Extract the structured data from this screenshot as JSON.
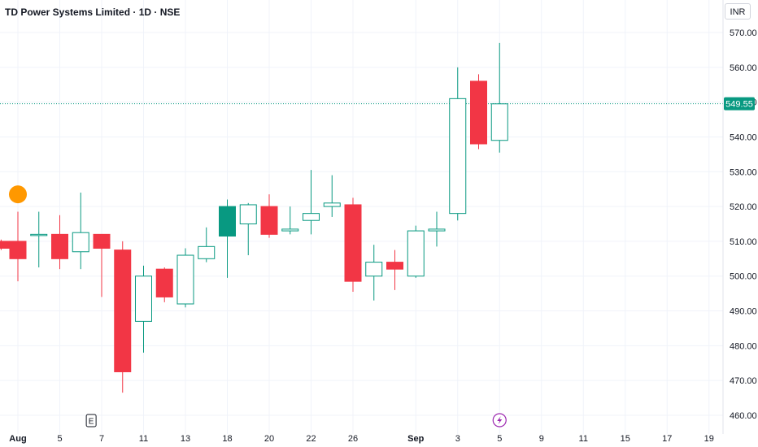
{
  "header": {
    "title": "TD Power Systems Limited · 1D · NSE",
    "currency": "INR"
  },
  "colors": {
    "up": "#089981",
    "down": "#f23645",
    "grid": "#f0f3fa",
    "last_price": "#089981",
    "dividend": "#ff9800",
    "split": "#9c27b0"
  },
  "chart_data": {
    "type": "candlestick",
    "title": "TD Power Systems Limited · 1D · NSE",
    "ylim": [
      457,
      574
    ],
    "y_ticks": [
      460,
      470,
      480,
      490,
      500,
      510,
      520,
      530,
      540,
      550,
      560,
      570
    ],
    "y_tick_labels": [
      "460.00",
      "470.00",
      "480.00",
      "490.00",
      "500.00",
      "510.00",
      "520.00",
      "530.00",
      "540.00",
      "550.00",
      "560.00",
      "570.00"
    ],
    "x_labels": [
      {
        "label": "Aug",
        "slot": 0,
        "bold": true
      },
      {
        "label": "5",
        "slot": 2
      },
      {
        "label": "7",
        "slot": 4
      },
      {
        "label": "11",
        "slot": 6
      },
      {
        "label": "13",
        "slot": 8
      },
      {
        "label": "18",
        "slot": 10
      },
      {
        "label": "20",
        "slot": 12
      },
      {
        "label": "22",
        "slot": 14
      },
      {
        "label": "26",
        "slot": 16
      },
      {
        "label": "Sep",
        "slot": 19,
        "bold": true
      },
      {
        "label": "3",
        "slot": 21
      },
      {
        "label": "5",
        "slot": 23
      },
      {
        "label": "9",
        "slot": 25
      },
      {
        "label": "11",
        "slot": 27
      },
      {
        "label": "15",
        "slot": 29
      },
      {
        "label": "17",
        "slot": 31
      },
      {
        "label": "19",
        "slot": 33
      }
    ],
    "last_price": 549.55,
    "last_price_label": "549.55",
    "candles": [
      {
        "slot": -0.8,
        "open": 510,
        "high": 510.5,
        "low": 507.5,
        "close": 508
      },
      {
        "slot": 0,
        "open": 510,
        "high": 518.5,
        "low": 498.5,
        "close": 505
      },
      {
        "slot": 1,
        "open": 512,
        "high": 518.5,
        "low": 502.5,
        "close": 512
      },
      {
        "slot": 2,
        "open": 512,
        "high": 517.5,
        "low": 502,
        "close": 505
      },
      {
        "slot": 3,
        "open": 507,
        "high": 524,
        "low": 502,
        "close": 512.5
      },
      {
        "slot": 4,
        "open": 512,
        "high": 512,
        "low": 494,
        "close": 508
      },
      {
        "slot": 5,
        "open": 507.5,
        "high": 510,
        "low": 466.5,
        "close": 472.5
      },
      {
        "slot": 6,
        "open": 487,
        "high": 503,
        "low": 478,
        "close": 500
      },
      {
        "slot": 7,
        "open": 502,
        "high": 502.5,
        "low": 492.5,
        "close": 494
      },
      {
        "slot": 8,
        "open": 492,
        "high": 508,
        "low": 491,
        "close": 506
      },
      {
        "slot": 9,
        "open": 505,
        "high": 514,
        "low": 504,
        "close": 508.5
      },
      {
        "slot": 10,
        "open": 511.5,
        "high": 522,
        "low": 499.5,
        "close": 520
      },
      {
        "slot": 11,
        "open": 515,
        "high": 521,
        "low": 506,
        "close": 520.5
      },
      {
        "slot": 12,
        "open": 520,
        "high": 523.5,
        "low": 511,
        "close": 512
      },
      {
        "slot": 13,
        "open": 513,
        "high": 520,
        "low": 512,
        "close": 513.5
      },
      {
        "slot": 14,
        "open": 516,
        "high": 530.5,
        "low": 512,
        "close": 518
      },
      {
        "slot": 15,
        "open": 520,
        "high": 529,
        "low": 517,
        "close": 521
      },
      {
        "slot": 16,
        "open": 520.5,
        "high": 522.5,
        "low": 495.5,
        "close": 498.5
      },
      {
        "slot": 17,
        "open": 500,
        "high": 509,
        "low": 493,
        "close": 504
      },
      {
        "slot": 18,
        "open": 504,
        "high": 507.5,
        "low": 496,
        "close": 502
      },
      {
        "slot": 19,
        "open": 500,
        "high": 514.5,
        "low": 499.5,
        "close": 513
      },
      {
        "slot": 20,
        "open": 513,
        "high": 518.5,
        "low": 508.5,
        "close": 513.5
      },
      {
        "slot": 21,
        "open": 518,
        "high": 560,
        "low": 516,
        "close": 551
      },
      {
        "slot": 22,
        "open": 556,
        "high": 558,
        "low": 536.5,
        "close": 538
      },
      {
        "slot": 23,
        "open": 539,
        "high": 567,
        "low": 535.5,
        "close": 549.5
      }
    ],
    "events": [
      {
        "type": "dividend-marker",
        "slot": 0,
        "price": 523.5
      },
      {
        "type": "earnings-marker",
        "label": "E",
        "slot": 3.5
      },
      {
        "type": "split-marker",
        "slot": 23
      }
    ]
  }
}
